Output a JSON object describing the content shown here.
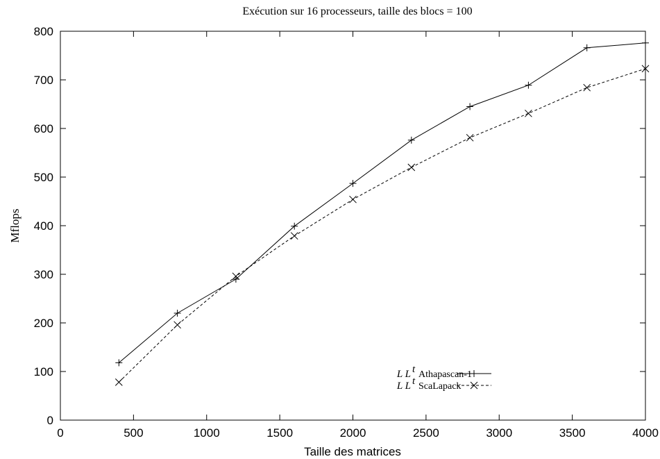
{
  "chart_data": {
    "type": "line",
    "title": "Exécution sur 16 processeurs, taille des blocs = 100",
    "xlabel": "Taille des matrices",
    "ylabel": "Mflops",
    "xlim": [
      0,
      4000
    ],
    "ylim": [
      0,
      800
    ],
    "xticks": [
      "0",
      "500",
      "1000",
      "1500",
      "2000",
      "2500",
      "3000",
      "3500",
      "4000"
    ],
    "yticks": [
      "0",
      "100",
      "200",
      "300",
      "400",
      "500",
      "600",
      "700",
      "800"
    ],
    "grid": false,
    "legend_position": "bottom-right",
    "x": [
      400,
      800,
      1200,
      1600,
      2000,
      2400,
      2800,
      3200,
      3600,
      4000
    ],
    "series": [
      {
        "name_math": "L L",
        "name_sup": "t",
        "name": "Athapascan-1",
        "marker": "plus",
        "line": "solid",
        "values": [
          118,
          220,
          290,
          399,
          487,
          576,
          645,
          689,
          766,
          776
        ]
      },
      {
        "name_math": "L L",
        "name_sup": "t",
        "name": "ScaLapack",
        "marker": "cross",
        "line": "dashed",
        "values": [
          78,
          196,
          296,
          379,
          454,
          520,
          581,
          631,
          684,
          723
        ]
      }
    ]
  }
}
